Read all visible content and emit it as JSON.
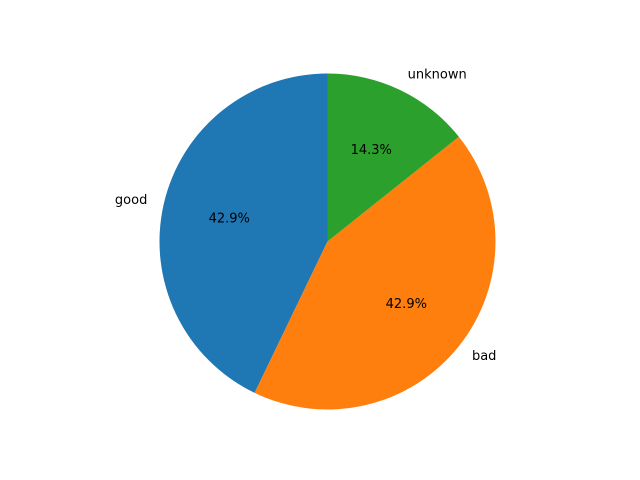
{
  "chart_data": {
    "type": "pie",
    "title": "",
    "start_angle_deg": 90,
    "direction": "counterclockwise",
    "slices": [
      {
        "label": "good",
        "value": 3,
        "pct_label": "42.9%",
        "color": "#1f77b4"
      },
      {
        "label": "bad",
        "value": 3,
        "pct_label": "42.9%",
        "color": "#ff7f0e"
      },
      {
        "label": "unknown",
        "value": 1,
        "pct_label": "14.3%",
        "color": "#2ca02c"
      }
    ]
  }
}
